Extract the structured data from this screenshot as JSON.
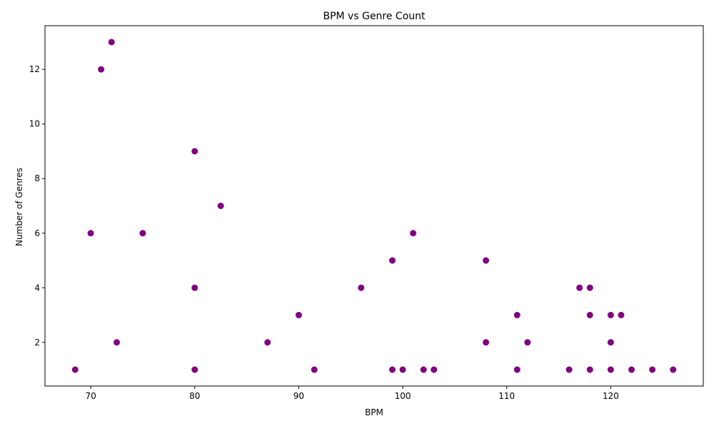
{
  "chart_data": {
    "type": "scatter",
    "title": "BPM vs Genre Count",
    "xlabel": "BPM",
    "ylabel": "Number of Genres",
    "xlim": [
      65.6,
      128.9
    ],
    "ylim": [
      0.4,
      13.6
    ],
    "xticks": [
      70,
      80,
      90,
      100,
      110,
      120
    ],
    "yticks": [
      2,
      4,
      6,
      8,
      10,
      12
    ],
    "grid": false,
    "legend": "none",
    "marker_color": "#800080",
    "points": [
      {
        "x": 68.5,
        "y": 1
      },
      {
        "x": 70,
        "y": 6
      },
      {
        "x": 71,
        "y": 12
      },
      {
        "x": 72,
        "y": 13
      },
      {
        "x": 72.5,
        "y": 2
      },
      {
        "x": 75,
        "y": 6
      },
      {
        "x": 80,
        "y": 9
      },
      {
        "x": 80,
        "y": 4
      },
      {
        "x": 80,
        "y": 1
      },
      {
        "x": 82.5,
        "y": 7
      },
      {
        "x": 87,
        "y": 2
      },
      {
        "x": 90,
        "y": 3
      },
      {
        "x": 91.5,
        "y": 1
      },
      {
        "x": 96,
        "y": 4
      },
      {
        "x": 99,
        "y": 5
      },
      {
        "x": 99,
        "y": 1
      },
      {
        "x": 100,
        "y": 1
      },
      {
        "x": 101,
        "y": 6
      },
      {
        "x": 102,
        "y": 1
      },
      {
        "x": 103,
        "y": 1
      },
      {
        "x": 108,
        "y": 5
      },
      {
        "x": 108,
        "y": 2
      },
      {
        "x": 111,
        "y": 3
      },
      {
        "x": 111,
        "y": 1
      },
      {
        "x": 112,
        "y": 2
      },
      {
        "x": 116,
        "y": 1
      },
      {
        "x": 117,
        "y": 4
      },
      {
        "x": 118,
        "y": 4
      },
      {
        "x": 118,
        "y": 3
      },
      {
        "x": 118,
        "y": 1
      },
      {
        "x": 120,
        "y": 3
      },
      {
        "x": 120,
        "y": 2
      },
      {
        "x": 120,
        "y": 1
      },
      {
        "x": 121,
        "y": 3
      },
      {
        "x": 122,
        "y": 1
      },
      {
        "x": 124,
        "y": 1
      },
      {
        "x": 126,
        "y": 1
      }
    ]
  }
}
